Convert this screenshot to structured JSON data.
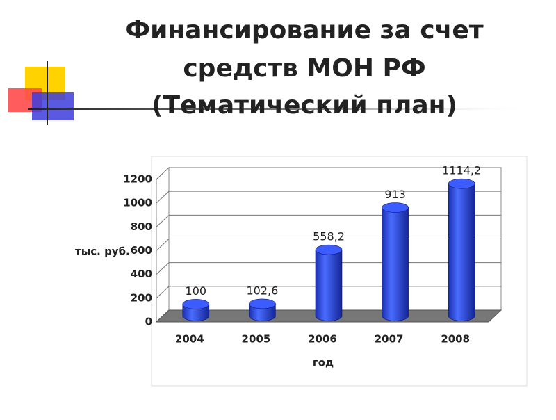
{
  "chart_data": {
    "type": "bar3d",
    "title": [
      "Финансирование за счет",
      "средств МОН РФ",
      "(Тематический план)"
    ],
    "y_label": "тыс. руб.",
    "x_label": "год",
    "categories": [
      "2004",
      "2005",
      "2006",
      "2007",
      "2008"
    ],
    "values": [
      100,
      102.6,
      558.2,
      913,
      1114.2
    ],
    "value_labels": [
      "100",
      "102,6",
      "558,2",
      "913",
      "1114,2"
    ],
    "color": "#2a44e0",
    "ylim": [
      0,
      1200
    ],
    "yticks": [
      0,
      200,
      400,
      600,
      800,
      1000,
      1200
    ],
    "grid": true
  }
}
